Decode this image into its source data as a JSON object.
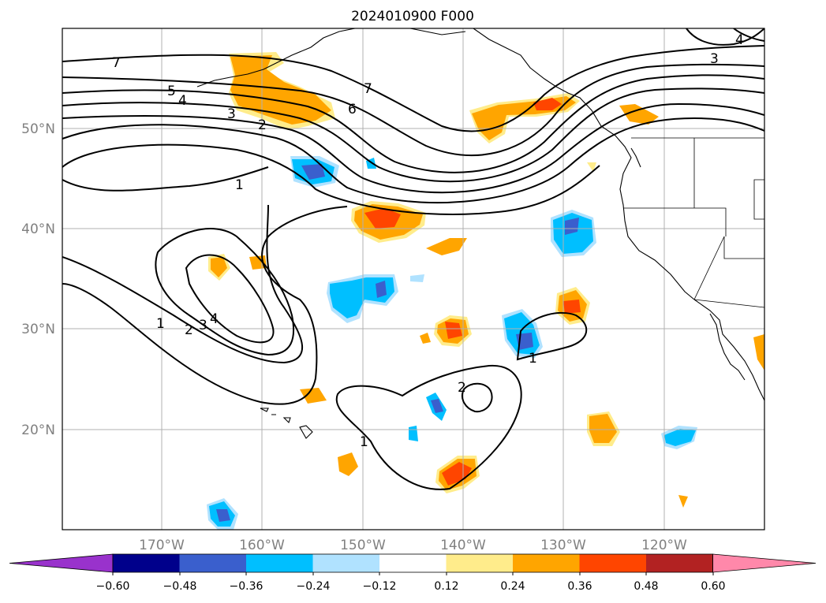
{
  "title": "2024010900 F000",
  "map": {
    "longitude_labels": [
      "170°W",
      "160°W",
      "150°W",
      "140°W",
      "130°W",
      "120°W"
    ],
    "latitude_labels": [
      "50°N",
      "40°N",
      "30°N",
      "20°N"
    ],
    "contour_labels": [
      "7",
      "7",
      "6",
      "5",
      "4",
      "3",
      "2",
      "1",
      "1",
      "2",
      "3",
      "4",
      "1",
      "2",
      "1",
      "3",
      "4"
    ]
  },
  "colorbar": {
    "ticks": [
      "−0.60",
      "−0.48",
      "−0.36",
      "−0.24",
      "−0.12",
      "0.12",
      "0.24",
      "0.36",
      "0.48",
      "0.60"
    ],
    "colors": [
      "#9932cc",
      "#00008b",
      "#3a5fcd",
      "#00bfff",
      "#b0e2ff",
      "#ffffff",
      "#ffec8b",
      "#ffa500",
      "#ff4500",
      "#b22222",
      "#ff88aa"
    ]
  },
  "colors": {
    "pos_light": "#ffec8b",
    "pos_mid": "#ffa500",
    "pos_strong": "#ff4500",
    "neg_light": "#b0e2ff",
    "neg_mid": "#00bfff",
    "neg_strong": "#3a5fcd"
  }
}
